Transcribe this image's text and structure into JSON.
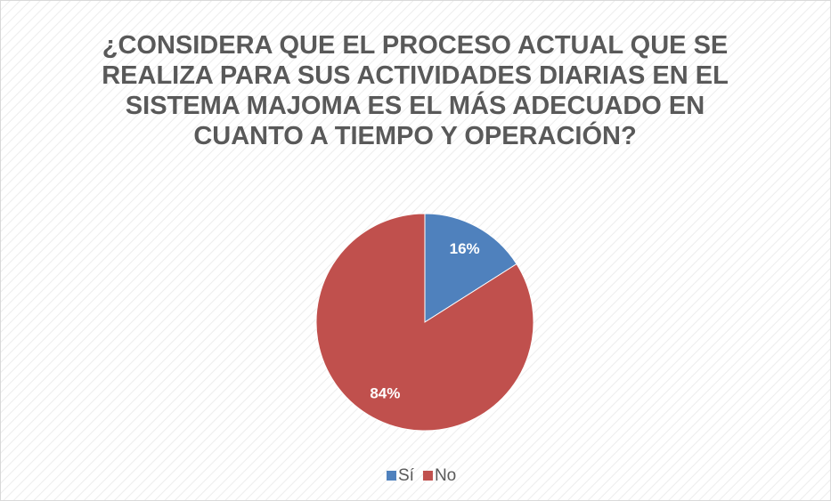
{
  "chart_data": {
    "type": "pie",
    "title": "¿CONSIDERA QUE EL PROCESO ACTUAL QUE SE REALIZA PARA SUS ACTIVIDADES DIARIAS EN EL SISTEMA MAJOMA ES EL MÁS ADECUADO EN CUANTO A TIEMPO Y OPERACIÓN?",
    "categories": [
      "Sí",
      "No"
    ],
    "values": [
      16,
      84
    ],
    "value_labels": [
      "16%",
      "84%"
    ],
    "colors": [
      "#4f81bd",
      "#c0504d"
    ],
    "legend": "bottom"
  }
}
